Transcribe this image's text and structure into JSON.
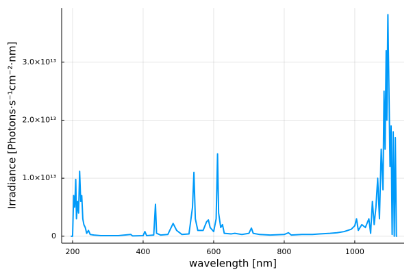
{
  "chart_data": {
    "type": "line",
    "x_label": "wavelength [nm]",
    "y_label": "Irradiance [Photons·s⁻¹cm⁻²·nm]",
    "color": "#009af9",
    "grid": true,
    "xlim": [
      169,
      1140
    ],
    "xticks": [
      200,
      400,
      600,
      800,
      1000
    ],
    "ylim": [
      -1200000000000.0,
      39300000000000.0
    ],
    "yticks": [
      0,
      {
        "value": 10000000000000.0,
        "label": "1.0×10¹³"
      },
      {
        "value": 20000000000000.0,
        "label": "2.0×10¹³"
      },
      {
        "value": 30000000000000.0,
        "label": "3.0×10¹³"
      }
    ],
    "x": [
      195,
      200,
      203,
      206,
      209,
      211,
      214,
      217,
      220,
      223,
      226,
      229,
      232,
      236,
      240,
      245,
      250,
      260,
      280,
      300,
      330,
      365,
      370,
      400,
      405,
      410,
      430,
      435,
      438,
      450,
      470,
      485,
      495,
      510,
      530,
      540,
      544,
      548,
      555,
      570,
      580,
      585,
      590,
      600,
      607,
      611,
      614,
      620,
      625,
      630,
      650,
      660,
      680,
      700,
      707,
      712,
      730,
      760,
      800,
      812,
      820,
      850,
      880,
      900,
      930,
      950,
      970,
      990,
      1000,
      1005,
      1010,
      1020,
      1030,
      1040,
      1045,
      1050,
      1055,
      1060,
      1065,
      1070,
      1075,
      1080,
      1083,
      1086,
      1089,
      1091,
      1094,
      1097,
      1100,
      1103,
      1106,
      1109,
      1112,
      1115,
      1118,
      1120
    ],
    "values": [
      0,
      0,
      7000000000000.0,
      5000000000000.0,
      9800000000000.0,
      3000000000000.0,
      6000000000000.0,
      4000000000000.0,
      11200000000000.0,
      6000000000000.0,
      7000000000000.0,
      3000000000000.0,
      2000000000000.0,
      1500000000000.0,
      500000000000.0,
      1000000000000.0,
      300000000000.0,
      200000000000.0,
      100000000000.0,
      100000000000.0,
      100000000000.0,
      300000000000.0,
      50000000000.0,
      100000000000.0,
      800000000000.0,
      100000000000.0,
      200000000000.0,
      5500000000000.0,
      500000000000.0,
      200000000000.0,
      300000000000.0,
      2200000000000.0,
      1000000000000.0,
      300000000000.0,
      400000000000.0,
      5000000000000.0,
      11000000000000.0,
      3000000000000.0,
      1000000000000.0,
      1000000000000.0,
      2500000000000.0,
      2800000000000.0,
      1500000000000.0,
      800000000000.0,
      3000000000000.0,
      14200000000000.0,
      4000000000000.0,
      1500000000000.0,
      2000000000000.0,
      500000000000.0,
      400000000000.0,
      500000000000.0,
      300000000000.0,
      500000000000.0,
      1400000000000.0,
      500000000000.0,
      300000000000.0,
      200000000000.0,
      300000000000.0,
      600000000000.0,
      200000000000.0,
      300000000000.0,
      300000000000.0,
      400000000000.0,
      500000000000.0,
      600000000000.0,
      800000000000.0,
      1200000000000.0,
      1800000000000.0,
      3000000000000.0,
      1000000000000.0,
      2000000000000.0,
      1500000000000.0,
      3000000000000.0,
      500000000000.0,
      6000000000000.0,
      2000000000000.0,
      5000000000000.0,
      10000000000000.0,
      3000000000000.0,
      15000000000000.0,
      8000000000000.0,
      25000000000000.0,
      15000000000000.0,
      32000000000000.0,
      20000000000000.0,
      38200000000000.0,
      25000000000000.0,
      12000000000000.0,
      19000000000000.0,
      300000000000.0,
      18000000000000.0,
      0,
      17000000000000.0,
      0,
      0
    ]
  }
}
